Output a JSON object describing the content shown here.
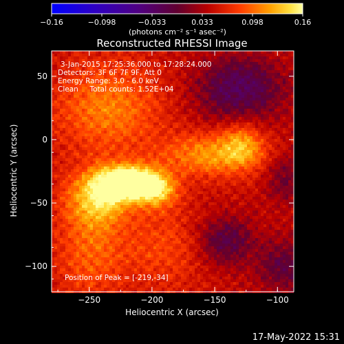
{
  "colorbar": {
    "ticks": [
      "-0.16",
      "-0.098",
      "-0.033",
      "0.033",
      "0.098",
      "0.16"
    ],
    "unit_label": "(photons cm⁻² s⁻¹ asec⁻²)",
    "min": -0.16,
    "max": 0.16
  },
  "chart_data": {
    "type": "heatmap",
    "title": "Reconstructed RHESSI Image",
    "xlabel": "Heliocentric X (arcsec)",
    "ylabel": "Heliocentric Y (arcsec)",
    "xlim": [
      -280,
      -87
    ],
    "ylim": [
      -120,
      70
    ],
    "xticks": [
      -250,
      -200,
      -150,
      -100
    ],
    "yticks": [
      50,
      0,
      -50,
      -100
    ],
    "xtick_labels": [
      "−250",
      "−200",
      "−150",
      "−100"
    ],
    "ytick_labels": [
      "50",
      "0",
      "−50",
      "−100"
    ],
    "peak": [
      -219,
      -34
    ],
    "sources": [
      {
        "x": -219,
        "y": -34,
        "amp": 0.16,
        "sx": 16,
        "sy": 9
      },
      {
        "x": -243,
        "y": -46,
        "amp": 0.09,
        "sx": 18,
        "sy": 16
      },
      {
        "x": -196,
        "y": -40,
        "amp": 0.08,
        "sx": 12,
        "sy": 10
      },
      {
        "x": -152,
        "y": -12,
        "amp": 0.07,
        "sx": 28,
        "sy": 12
      },
      {
        "x": -128,
        "y": -3,
        "amp": 0.055,
        "sx": 12,
        "sy": 12
      },
      {
        "x": -235,
        "y": 25,
        "amp": 0.06,
        "sx": 30,
        "sy": 25
      },
      {
        "x": -250,
        "y": -90,
        "amp": 0.045,
        "sx": 20,
        "sy": 25
      },
      {
        "x": -190,
        "y": -85,
        "amp": 0.035,
        "sx": 25,
        "sy": 22
      },
      {
        "x": -130,
        "y": 40,
        "amp": -0.07,
        "sx": 25,
        "sy": 18
      },
      {
        "x": -142,
        "y": -80,
        "amp": -0.06,
        "sx": 16,
        "sy": 14
      },
      {
        "x": -95,
        "y": -100,
        "amp": -0.05,
        "sx": 15,
        "sy": 15
      },
      {
        "x": -95,
        "y": -30,
        "amp": -0.04,
        "sx": 10,
        "sy": 15
      }
    ],
    "annotations": [
      "3-Jan-2015 17:25:36.000 to 17:28:24.000",
      "Detectors: 3F 6F 7F 9F, Att 0",
      "Energy Range: 3.0 - 6.0 keV",
      "Clean     Total counts: 1.52E+04",
      "Position of Peak = [-219,-34]"
    ]
  },
  "footer": {
    "timestamp": "17-May-2022 15:31"
  }
}
